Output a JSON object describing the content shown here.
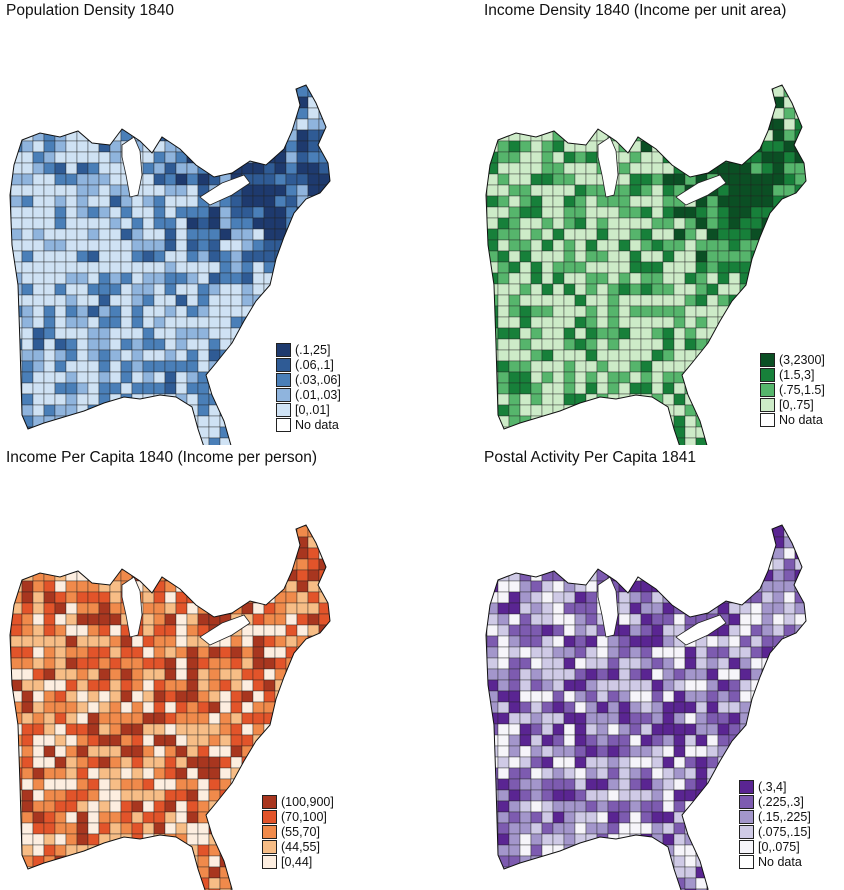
{
  "panels": [
    {
      "id": "population-density",
      "title": "Population Density 1840",
      "legend": [
        {
          "label": "(.1,25]",
          "color": "#1e3a6e"
        },
        {
          "label": "(.06,.1]",
          "color": "#2f5b95"
        },
        {
          "label": "(.03,.06]",
          "color": "#4a7fb8"
        },
        {
          "label": "(.01,.03]",
          "color": "#8fb4dd"
        },
        {
          "label": "[0,.01]",
          "color": "#cfe2f4"
        },
        {
          "label": "No data",
          "color": "#ffffff"
        }
      ]
    },
    {
      "id": "income-density",
      "title": "Income Density 1840 (Income per unit area)",
      "legend": [
        {
          "label": "(3,2300]",
          "color": "#0b4f24"
        },
        {
          "label": "(1.5,3]",
          "color": "#17803a"
        },
        {
          "label": "(.75,1.5]",
          "color": "#56b56c"
        },
        {
          "label": "[0,.75]",
          "color": "#cdebc8"
        },
        {
          "label": "No data",
          "color": "#ffffff"
        }
      ]
    },
    {
      "id": "income-per-capita",
      "title": "Income Per Capita 1840 (Income per person)",
      "legend": [
        {
          "label": "(100,900]",
          "color": "#a8361f"
        },
        {
          "label": "(70,100]",
          "color": "#e2542a"
        },
        {
          "label": "(55,70]",
          "color": "#f08a4b"
        },
        {
          "label": "(44,55]",
          "color": "#f7bd86"
        },
        {
          "label": "[0,44]",
          "color": "#fdeee0"
        }
      ]
    },
    {
      "id": "postal-activity",
      "title": "Postal Activity Per Capita 1841",
      "legend": [
        {
          "label": "(.3,4]",
          "color": "#5a2592"
        },
        {
          "label": "(.225,.3]",
          "color": "#7d5bb0"
        },
        {
          "label": "(.15,.225]",
          "color": "#a396cb"
        },
        {
          "label": "(.075,.15]",
          "color": "#cfcae6"
        },
        {
          "label": "[0,.075]",
          "color": "#f6f5fa"
        },
        {
          "label": "No data",
          "color": "#ffffff"
        }
      ]
    }
  ]
}
